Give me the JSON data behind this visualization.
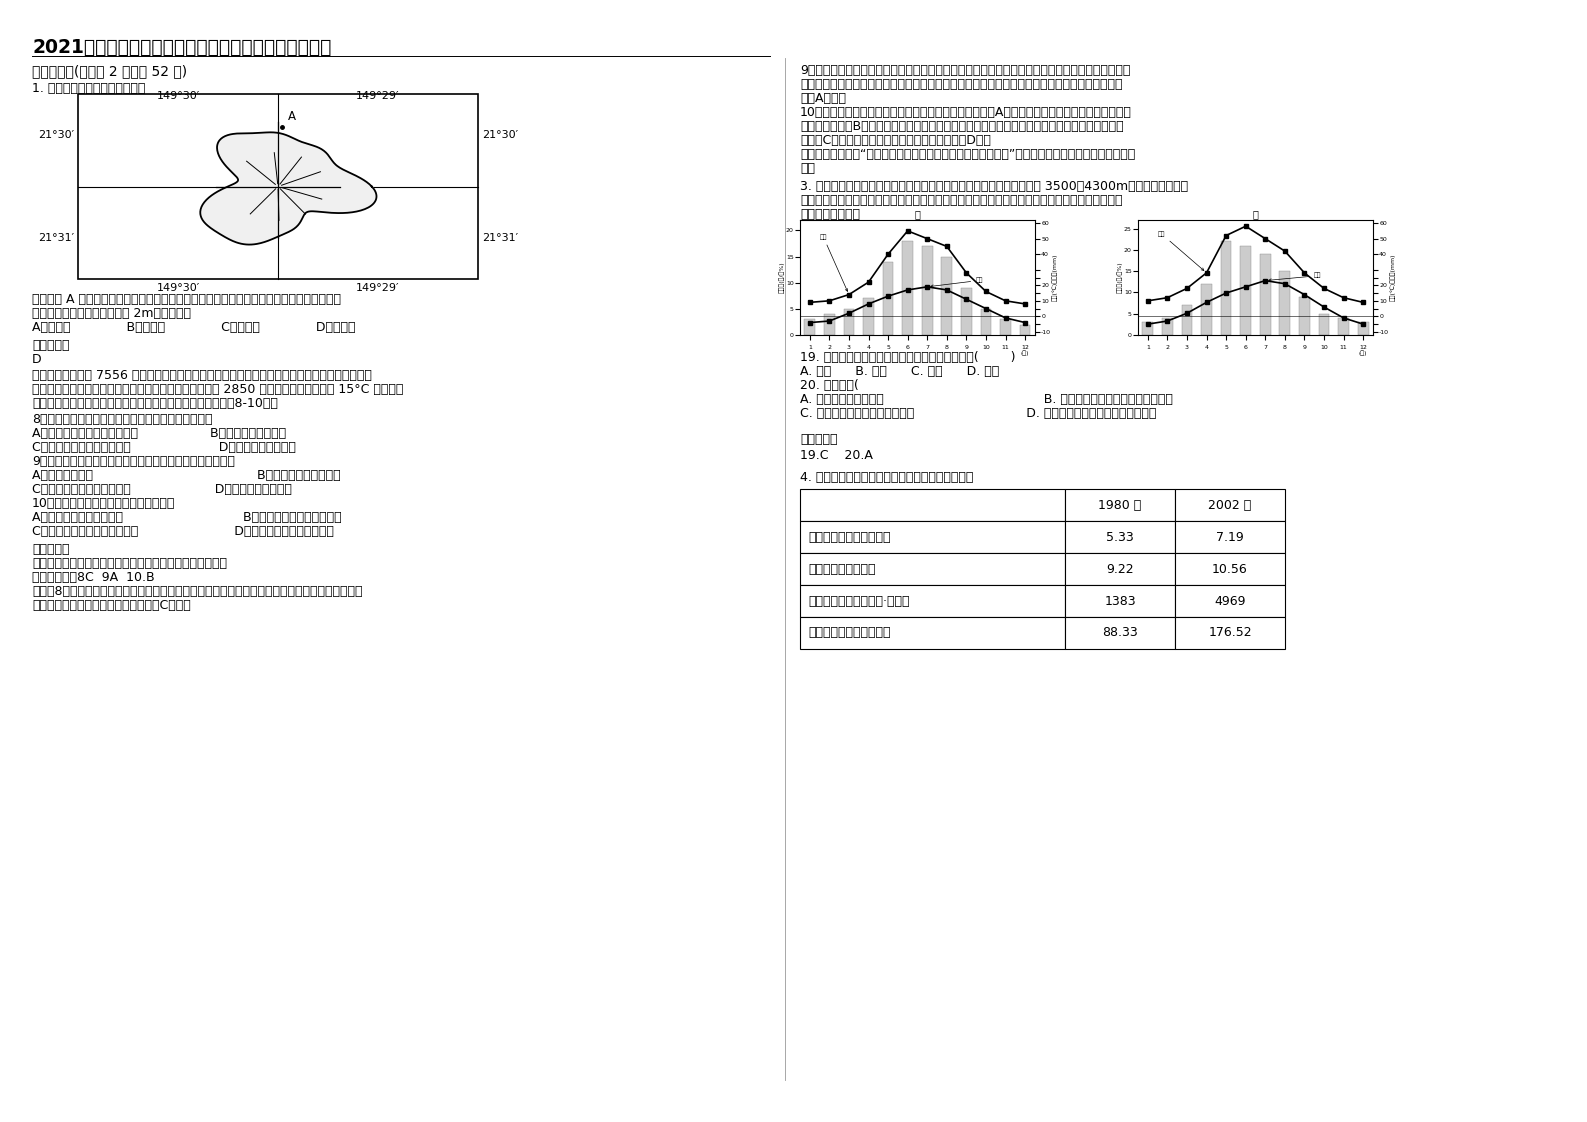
{
  "title": "2021年浙江省绍兴市通源中学高三地理联考试卷含解析",
  "sec1": "一、选择题(每小题 2 分，共 52 分)",
  "q1_head": "1. 读某小岛图和下列材料，完成",
  "map_tl0": "149°30′",
  "map_tl1": "149°29′",
  "map_bl0": "149°30′",
  "map_bl1": "149°29′",
  "map_ll0": "21°30′",
  "map_ll1": "21°31′",
  "map_rl0": "21°30′",
  "map_rl1": "21°31′",
  "q1_body1": "位于该岛 A 地的某学校地理兴趣小组，在平地上用立竿测影的方法逐日测得竿影长度来推算",
  "q1_body2": "正午太阳高度。若所立竿长为 2m。该岛位于",
  "q1_opts": "A．北冰洋              B．大西洋              C．印度洋              D．太平洋",
  "ref1": "参考答案：",
  "ans1": "D",
  "q2_l1": "贡岚山（主峰海拔 7556 米）是四川最高的山。贡岚山东坡的海螺沟是中国唯一的冰川森林公园。",
  "q2_l2": "沟内拥有低纬度地带海拔最低的冰川，冰川下限的海拔约 2850 米。沟内年平均气温在 15°C 左右，沟",
  "q2_l3": "内蕋藏有大流量涌泉和温泉，具有大面积原始森林，据此回答8-10题。",
  "q8": "8．海螺沟拥有低纬度地带海拔最低冰川的主要条件是",
  "q8_AB": "A．纬度低促进海拔高，气温低                  B．沟内封闭，光照弱",
  "q8_CD": "C．暖湿气流迎风坡，降水多                      D．地处阴坡，气温低",
  "q9": "9．近几十年来，海螺沟冰川下限有上升趋势，这是主要因为",
  "q9_AB": "A．全球气候变化                                         B．植被破坏，降水减少",
  "q9_CD": "C．温泉、涌泉大量融化冰川                     D．极端寒冷天气增多",
  "q10": "10．关于海螺沟地理特征的说法正确的是",
  "q10_AB": "A．冰川沉积物颗粒物均匀                              B．地壳活跃，地质条件复杂",
  "q10_CD": "C．沟内小溪流量季节变化很小                        D．沟内原始森林为热带雨林",
  "ref2": "参考答案：",
  "kn": "【知识点】本题考查雪线、全球变暖、区域地理环境特征。",
  "ans2": "【答案解析】8C  9A  10.B",
  "parse8_l1": "解析：8题，海螺沟不但纬度低，且冰川的海拔是同纬度最低。它是因为处于夏季风的迎风坡，降水",
  "parse8_l2": "多，导致积雪多，所以冰川的海拔低。C正确。",
  "parse9_r1": "9题，根据题目信息可知，沟内有大面积原始森林，没有遇到植被破坏；温泉、涌泉位于沟内，对冰",
  "parse9_r2": "川的影响不大；极端寒冷天气会使冰川下限降低；但全球气候变暖，气温升高，会使冰川的下限上",
  "parse9_r3": "升。A正确。",
  "parse10_r1": "10题，根据所学知识可知，冰川堆积物的颗粒大小混杂。A错；此地处于构造活动带，地壳活跃，",
  "parse10_r2": "地质条件夏杂。B正确；此地属于亚热带季风气候，降水的季节变化大，所以沟内小溪流量季节变",
  "parse10_r3": "化大。C错；沟内原始森林为亚热带常绿阔叶林。D错。",
  "thought_r1": "【思路点拨】熟悉“冰川分布的因素，就是影响雪线分布的因素”这一知识点是解题的关键。本题难度",
  "thought_r2": "中等",
  "q3_l1": "3. 嘉什科与伊犁河汇合点至霍尔果斯是新疆伊犁河于流北山区，海拔为 3500～4300m。下图中甲水文站",
  "q3_l2": "位于山地中东部，乙水文站位于北山区中西部。下图示意两水文站气温、降水量、径流量变化。据",
  "q3_l3": "此完成下面小题。",
  "q19": "19. 甲水文站径流季节变化的主要影响因素分别是(        )",
  "q19_opts": "A. 地形      B. 降水      C. 气温      D. 植被",
  "q20": "20. 据图判断(",
  "q20_AB": "A. 甲站位于乙站的上游                                        B. 甲站以上河段以积雪融水补给为主",
  "q20_CD": "C. 甲、乙两站降水均集中在夏季                            D. 乙站以上河段以冰川融水补给为主",
  "ref3": "参考答案：",
  "ans3": "19.C    20.A",
  "q4_intro": "4. 下表显示了我国陆路交通的部分数据，据此回答",
  "th0": "",
  "th1": "1980 年",
  "th2": "2002 年",
  "tr0_0": "铁路运营里程（万千米）",
  "tr0_1": "5.33",
  "tr0_2": "7.19",
  "tr1_0": "铁路客运量（亿人）",
  "tr1_1": "9.22",
  "tr1_2": "10.56",
  "tr2_0": "铁路旅客周转量（亿人·千米）",
  "tr2_1": "1383",
  "tr2_2": "4969",
  "tr3_0": "公路营运里程（万千米）",
  "tr3_1": "88.33",
  "tr3_2": "176.52",
  "bg": "#ffffff",
  "chart1_flow": [
    3,
    4,
    5,
    7,
    14,
    18,
    17,
    15,
    9,
    5,
    3,
    2
  ],
  "chart1_temp": [
    -4,
    -3,
    2,
    8,
    13,
    17,
    19,
    17,
    11,
    5,
    -1,
    -4
  ],
  "chart1_prec": [
    9,
    10,
    14,
    22,
    40,
    55,
    50,
    45,
    28,
    16,
    10,
    8
  ],
  "chart2_flow": [
    3,
    4,
    7,
    12,
    22,
    21,
    19,
    15,
    9,
    5,
    4,
    3
  ],
  "chart2_temp": [
    -5,
    -3,
    2,
    9,
    15,
    19,
    23,
    21,
    14,
    6,
    -1,
    -5
  ],
  "chart2_prec": [
    10,
    12,
    18,
    28,
    52,
    58,
    50,
    42,
    28,
    18,
    12,
    9
  ]
}
